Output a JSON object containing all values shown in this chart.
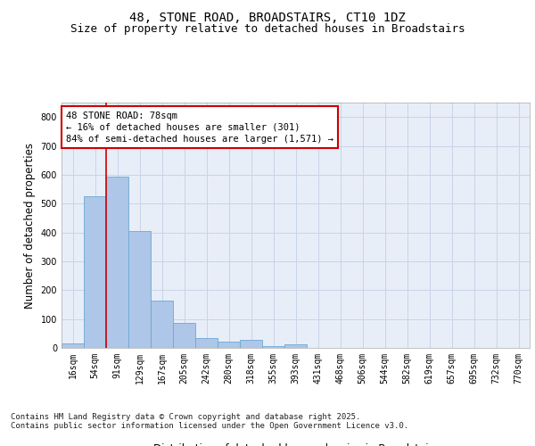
{
  "title1": "48, STONE ROAD, BROADSTAIRS, CT10 1DZ",
  "title2": "Size of property relative to detached houses in Broadstairs",
  "xlabel": "Distribution of detached houses by size in Broadstairs",
  "ylabel": "Number of detached properties",
  "categories": [
    "16sqm",
    "54sqm",
    "91sqm",
    "129sqm",
    "167sqm",
    "205sqm",
    "242sqm",
    "280sqm",
    "318sqm",
    "355sqm",
    "393sqm",
    "431sqm",
    "468sqm",
    "506sqm",
    "544sqm",
    "582sqm",
    "619sqm",
    "657sqm",
    "695sqm",
    "732sqm",
    "770sqm"
  ],
  "values": [
    14,
    524,
    592,
    405,
    165,
    88,
    33,
    21,
    27,
    5,
    13,
    1,
    1,
    1,
    0,
    0,
    0,
    0,
    0,
    0,
    0
  ],
  "bar_color": "#aec6e8",
  "bar_edge_color": "#6aaad4",
  "grid_color": "#c8d4e8",
  "background_color": "#e8eef8",
  "vline_x": 1.72,
  "vline_color": "#cc0000",
  "annotation_text": "48 STONE ROAD: 78sqm\n← 16% of detached houses are smaller (301)\n84% of semi-detached houses are larger (1,571) →",
  "annotation_box_color": "#ffffff",
  "annotation_box_edge": "#cc0000",
  "footnote1": "Contains HM Land Registry data © Crown copyright and database right 2025.",
  "footnote2": "Contains public sector information licensed under the Open Government Licence v3.0.",
  "ylim": [
    0,
    850
  ],
  "yticks": [
    0,
    100,
    200,
    300,
    400,
    500,
    600,
    700,
    800
  ],
  "title_fontsize": 10,
  "subtitle_fontsize": 9,
  "label_fontsize": 8.5,
  "tick_fontsize": 7,
  "footnote_fontsize": 6.5,
  "annotation_fontsize": 7.5
}
